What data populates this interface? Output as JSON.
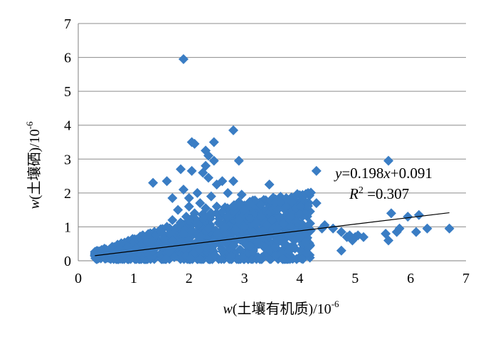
{
  "chart_data": {
    "type": "scatter",
    "title": "",
    "xlabel": {
      "var": "w",
      "text": "(土壤有机质)/10",
      "exp": "-6"
    },
    "ylabel": {
      "var": "w",
      "text": "(土壤硒)/10",
      "exp": "-6"
    },
    "xlim": [
      0,
      7
    ],
    "ylim": [
      0,
      7
    ],
    "x_ticks": [
      "0",
      "1",
      "2",
      "3",
      "4",
      "5",
      "6",
      "7"
    ],
    "y_ticks": [
      "0",
      "1",
      "2",
      "3",
      "4",
      "5",
      "6",
      "7"
    ],
    "grid": "horizontal",
    "marker": "diamond",
    "marker_color": "#3a7dc4",
    "series": [
      {
        "points": [
          [
            0.3,
            0.14
          ],
          [
            0.35,
            0.1
          ],
          [
            0.4,
            0.2
          ],
          [
            0.45,
            0.15
          ],
          [
            0.5,
            0.25
          ],
          [
            0.55,
            0.18
          ],
          [
            0.6,
            0.3
          ],
          [
            0.65,
            0.2
          ],
          [
            0.7,
            0.28
          ],
          [
            0.75,
            0.35
          ],
          [
            0.8,
            0.22
          ],
          [
            0.85,
            0.32
          ],
          [
            0.9,
            0.4
          ],
          [
            0.95,
            0.26
          ],
          [
            1.0,
            0.3
          ],
          [
            1.0,
            0.45
          ],
          [
            1.05,
            0.38
          ],
          [
            1.1,
            0.25
          ],
          [
            1.15,
            0.5
          ],
          [
            1.2,
            0.35
          ],
          [
            1.25,
            0.55
          ],
          [
            1.3,
            0.42
          ],
          [
            1.35,
            0.6
          ],
          [
            1.35,
            0.3
          ],
          [
            1.4,
            0.75
          ],
          [
            1.45,
            0.5
          ],
          [
            1.5,
            0.85
          ],
          [
            1.5,
            0.4
          ],
          [
            1.55,
            0.65
          ],
          [
            1.6,
            1.0
          ],
          [
            1.6,
            0.5
          ],
          [
            1.65,
            0.8
          ],
          [
            1.7,
            1.2
          ],
          [
            1.7,
            0.6
          ],
          [
            1.75,
            0.95
          ],
          [
            1.8,
            1.5
          ],
          [
            1.8,
            0.45
          ],
          [
            1.85,
            1.1
          ],
          [
            1.9,
            0.8
          ],
          [
            1.95,
            1.3
          ],
          [
            2.0,
            0.6
          ],
          [
            2.0,
            1.6
          ],
          [
            2.05,
            0.9
          ],
          [
            2.1,
            1.4
          ],
          [
            2.1,
            0.5
          ],
          [
            2.15,
            1.1
          ],
          [
            2.2,
            1.7
          ],
          [
            2.2,
            0.7
          ],
          [
            2.25,
            1.25
          ],
          [
            2.3,
            0.4
          ],
          [
            2.3,
            1.55
          ],
          [
            2.35,
            0.95
          ],
          [
            2.4,
            1.35
          ],
          [
            2.45,
            0.6
          ],
          [
            2.5,
            1.6
          ],
          [
            2.5,
            0.8
          ],
          [
            2.55,
            1.1
          ],
          [
            2.6,
            1.45
          ],
          [
            2.6,
            0.55
          ],
          [
            2.65,
            1.0
          ],
          [
            2.7,
            1.3
          ],
          [
            2.75,
            0.7
          ],
          [
            2.8,
            1.6
          ],
          [
            2.85,
            0.9
          ],
          [
            2.9,
            1.2
          ],
          [
            2.95,
            0.6
          ],
          [
            3.0,
            1.0
          ],
          [
            3.0,
            1.5
          ],
          [
            3.05,
            0.75
          ],
          [
            3.1,
            1.25
          ],
          [
            3.15,
            0.85
          ],
          [
            3.2,
            1.1
          ],
          [
            3.25,
            0.6
          ],
          [
            3.3,
            1.3
          ],
          [
            3.35,
            0.9
          ],
          [
            3.4,
            1.05
          ],
          [
            3.45,
            0.7
          ],
          [
            3.5,
            1.2
          ],
          [
            3.55,
            0.8
          ],
          [
            3.6,
            0.95
          ],
          [
            3.65,
            0.65
          ],
          [
            3.7,
            1.1
          ],
          [
            3.75,
            0.85
          ],
          [
            3.8,
            0.75
          ],
          [
            3.85,
            1.0
          ],
          [
            3.9,
            0.6
          ],
          [
            3.95,
            0.9
          ],
          [
            4.0,
            0.7
          ],
          [
            4.05,
            0.95
          ],
          [
            4.1,
            0.55
          ],
          [
            1.9,
            5.95
          ],
          [
            2.05,
            3.5
          ],
          [
            2.1,
            3.45
          ],
          [
            2.45,
            3.5
          ],
          [
            2.8,
            3.85
          ],
          [
            2.3,
            3.25
          ],
          [
            2.35,
            3.1
          ],
          [
            2.45,
            2.95
          ],
          [
            2.9,
            2.95
          ],
          [
            2.3,
            2.8
          ],
          [
            1.85,
            2.7
          ],
          [
            2.05,
            2.65
          ],
          [
            2.25,
            2.6
          ],
          [
            2.35,
            2.45
          ],
          [
            2.6,
            2.35
          ],
          [
            1.6,
            2.35
          ],
          [
            1.35,
            2.3
          ],
          [
            2.8,
            2.35
          ],
          [
            1.9,
            2.1
          ],
          [
            2.5,
            2.25
          ],
          [
            3.45,
            2.25
          ],
          [
            2.15,
            2.0
          ],
          [
            2.7,
            2.0
          ],
          [
            2.95,
            1.95
          ],
          [
            2.4,
            1.9
          ],
          [
            1.7,
            1.85
          ],
          [
            2.0,
            1.85
          ],
          [
            3.1,
            1.7
          ],
          [
            3.3,
            1.65
          ],
          [
            3.85,
            1.75
          ],
          [
            3.75,
            1.6
          ],
          [
            4.3,
            1.7
          ],
          [
            4.3,
            2.65
          ],
          [
            3.6,
            1.5
          ],
          [
            4.45,
            1.05
          ],
          [
            4.4,
            0.95
          ],
          [
            4.2,
            0.9
          ],
          [
            4.6,
            0.95
          ],
          [
            4.75,
            0.85
          ],
          [
            4.85,
            0.7
          ],
          [
            4.9,
            0.75
          ],
          [
            4.95,
            0.6
          ],
          [
            5.0,
            0.7
          ],
          [
            5.05,
            0.75
          ],
          [
            5.15,
            0.7
          ],
          [
            4.75,
            0.3
          ],
          [
            5.6,
            2.95
          ],
          [
            5.65,
            1.4
          ],
          [
            5.55,
            0.8
          ],
          [
            5.6,
            0.6
          ],
          [
            5.75,
            0.85
          ],
          [
            5.8,
            0.95
          ],
          [
            5.95,
            1.3
          ],
          [
            6.1,
            0.85
          ],
          [
            6.15,
            1.35
          ],
          [
            6.3,
            0.95
          ],
          [
            6.7,
            0.95
          ]
        ]
      }
    ],
    "trendline": {
      "type": "linear",
      "slope": 0.198,
      "intercept": 0.091,
      "x_range": [
        0.3,
        6.7
      ],
      "color": "#000000"
    },
    "annotation": {
      "y": "y",
      "eq": "=0.198",
      "x": "x",
      "rest": "+0.091",
      "r": "R",
      "r_exp": "2",
      "r_val": " =0.307"
    }
  }
}
